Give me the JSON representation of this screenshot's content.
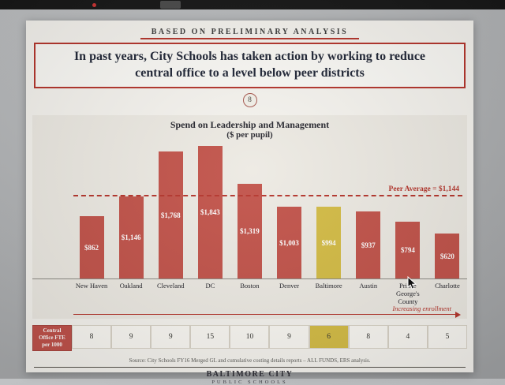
{
  "window": {
    "top_bar_color": "#181818"
  },
  "slide": {
    "eyebrow": "BASED ON PRELIMINARY ANALYSIS",
    "title": "In past years, City Schools has taken action by working to reduce central office to a level below peer districts",
    "page_number": "8",
    "enrollment_label": "Increasing enrollment",
    "source": "Source: City Schools FY16 Merged GL and cumulative costing details reports – ALL FUNDS, ERS analysis.",
    "footer_line1": "BALTIMORE CITY",
    "footer_line2": "PUBLIC SCHOOLS",
    "accent_red": "#b5352c"
  },
  "chart_data": {
    "type": "bar",
    "title": "Spend on Leadership and Management",
    "subtitle": "($ per pupil)",
    "categories": [
      "New Haven",
      "Oakland",
      "Cleveland",
      "DC",
      "Boston",
      "Denver",
      "Baltimore",
      "Austin",
      "Prince George's County",
      "Charlotte"
    ],
    "values": [
      862,
      1146,
      1768,
      1843,
      1319,
      1003,
      994,
      937,
      794,
      620
    ],
    "value_labels": [
      "$862",
      "$1,146",
      "$1,768",
      "$1,843",
      "$1,319",
      "$1,003",
      "$994",
      "$937",
      "$794",
      "$620"
    ],
    "highlight_category": "Baltimore",
    "bar_color": "#c2534a",
    "highlight_color": "#d4bc45",
    "peer_average": 1144,
    "peer_average_label": "Peer Average = $1,144",
    "xlabel": "",
    "ylabel": "$ per pupil",
    "ylim": [
      0,
      1900
    ],
    "grid": false,
    "legend": false
  },
  "fte_table": {
    "header": "Central Office FTE per 1000",
    "values": [
      "8",
      "9",
      "9",
      "15",
      "10",
      "9",
      "6",
      "8",
      "4",
      "5"
    ],
    "highlight_index": 6,
    "highlight_color": "#d4bc45"
  }
}
